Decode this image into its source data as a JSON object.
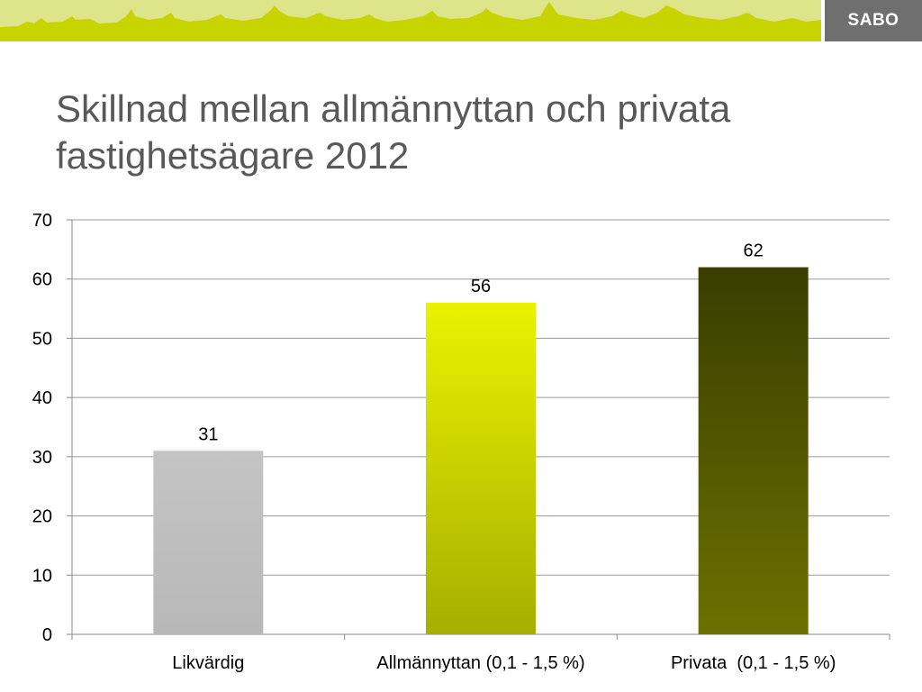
{
  "header": {
    "logo": "SABO"
  },
  "slide": {
    "title_line1": "Skillnad mellan allmännyttan och privata",
    "title_line2": "fastighetsägare 2012"
  },
  "chart_data": {
    "type": "bar",
    "categories": [
      "Likvärdig",
      "Allmännyttan (0,1 - 1,5 %)",
      "Privata  (0,1 - 1,5 %)"
    ],
    "values": [
      31,
      56,
      62
    ],
    "data_labels": [
      "31",
      "56",
      "62"
    ],
    "ylim": [
      0,
      70
    ],
    "yticks": [
      0,
      10,
      20,
      30,
      40,
      50,
      60,
      70
    ],
    "grid": true,
    "legend": "none",
    "colors": [
      "#bfbfbf",
      "#e8f000",
      "#3a3e00"
    ]
  }
}
